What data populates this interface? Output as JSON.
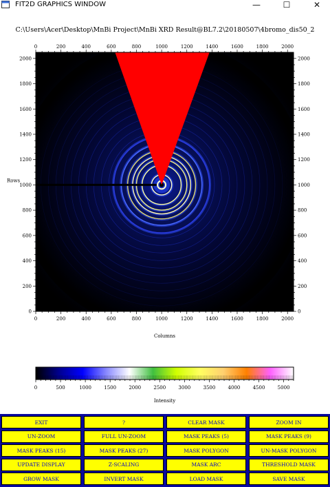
{
  "window": {
    "title": "FIT2D GRAPHICS WINDOW",
    "minimize_glyph": "—",
    "maximize_glyph": "☐",
    "close_glyph": "✕"
  },
  "plot": {
    "title": "C:\\Users\\Acer\\Desktop\\MnBi Project\\MnBi XRD Result@BL7.2\\20180507\\4bromo_dis50_2",
    "xlabel": "Columns",
    "ylabel": "Rows",
    "x_range": [
      0,
      2048
    ],
    "y_range": [
      0,
      2048
    ],
    "x_ticks": [
      0,
      200,
      400,
      600,
      800,
      1000,
      1200,
      1400,
      1600,
      1800,
      2000
    ],
    "y_ticks": [
      0,
      200,
      400,
      600,
      800,
      1000,
      1200,
      1400,
      1600,
      1800,
      2000
    ],
    "beam_center": [
      1000,
      1000
    ],
    "mask_wedge": [
      [
        1000,
        1000
      ],
      [
        630,
        2048
      ],
      [
        1000,
        2048
      ],
      [
        1380,
        2048
      ]
    ],
    "mask_color": "#ff0000",
    "beamstop_y": 1000,
    "beamstop_x_end": 960,
    "rings": [
      {
        "radius": 80,
        "color": "#ffffcc"
      },
      {
        "radius": 155,
        "color": "#ffffa0"
      },
      {
        "radius": 200,
        "color": "#f4f080"
      },
      {
        "radius": 230,
        "color": "#fff8b0"
      },
      {
        "radius": 270,
        "color": "#e0d870"
      },
      {
        "radius": 320,
        "color": "#4a6aff"
      },
      {
        "radius": 380,
        "color": "#2a3ae0"
      }
    ]
  },
  "colorbar": {
    "label": "Intensity",
    "ticks": [
      0,
      500,
      1000,
      1500,
      2000,
      2500,
      3000,
      3500,
      4000,
      4500,
      5000
    ],
    "range": [
      0,
      5200
    ],
    "stops": [
      "#000000",
      "#000090",
      "#0000ff",
      "#8888ff",
      "#ffffff",
      "#40c040",
      "#d0ff00",
      "#ffff60",
      "#ffd070",
      "#ff8000",
      "#ff60ff",
      "#ffffff"
    ]
  },
  "buttons": [
    [
      "EXIT",
      "?",
      "CLEAR MASK",
      "ZOOM IN"
    ],
    [
      "UN-ZOOM",
      "FULL UN-ZOOM",
      "MASK PEAKS (5)",
      "MASK PEAKS (9)"
    ],
    [
      "MASK PEAKS (15)",
      "MASK PEAKS (27)",
      "MASK POLYGON",
      "UN-MASK POLYGON"
    ],
    [
      "UPDATE DISPLAY",
      "Z-SCALING",
      "MASK ARC",
      "THRESHOLD MASK"
    ],
    [
      "GROW MASK",
      "INVERT MASK",
      "LOAD MASK",
      "SAVE MASK"
    ]
  ]
}
